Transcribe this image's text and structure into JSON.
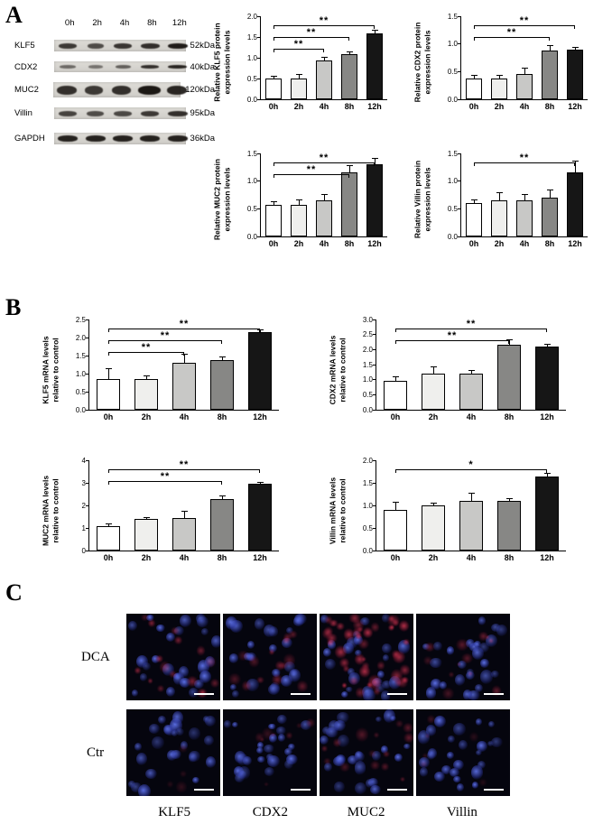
{
  "panel_labels": {
    "a": "A",
    "b": "B",
    "c": "C"
  },
  "bar_colors": [
    "#ffffff",
    "#efefed",
    "#c8c8c6",
    "#878785",
    "#161616"
  ],
  "blot": {
    "timepoints": [
      "0h",
      "2h",
      "4h",
      "8h",
      "12h"
    ],
    "rows": [
      {
        "protein": "KLF5",
        "kda": "52kDa"
      },
      {
        "protein": "CDX2",
        "kda": "40kDa"
      },
      {
        "protein": "MUC2",
        "kda": "120kDa"
      },
      {
        "protein": "Villin",
        "kda": "95kDa"
      },
      {
        "protein": "GAPDH",
        "kda": "36kDa"
      }
    ]
  },
  "chart_data": [
    {
      "id": "klf5-protein",
      "type": "bar",
      "panel": "A",
      "ylabel": "Relative KLF5 protein expression levels",
      "ylabel_lines": [
        "Relative KLF5 protein",
        "expression levels"
      ],
      "categories": [
        "0h",
        "2h",
        "4h",
        "8h",
        "12h"
      ],
      "values": [
        0.5,
        0.5,
        0.93,
        1.08,
        1.58
      ],
      "errors": [
        0.04,
        0.08,
        0.07,
        0.05,
        0.07
      ],
      "ylim": [
        0,
        2.0
      ],
      "yticks": [
        "0.0",
        "0.5",
        "1.0",
        "1.5",
        "2.0"
      ],
      "sig": [
        {
          "from": 0,
          "to": 4,
          "label": "**"
        },
        {
          "from": 0,
          "to": 3,
          "label": "**"
        },
        {
          "from": 0,
          "to": 2,
          "label": "**"
        }
      ]
    },
    {
      "id": "cdx2-protein",
      "type": "bar",
      "panel": "A",
      "ylabel": "Relative CDX2 protein expression levels",
      "ylabel_lines": [
        "Relative CDX2 protein",
        "expression levels"
      ],
      "categories": [
        "0h",
        "2h",
        "4h",
        "8h",
        "12h"
      ],
      "values": [
        0.38,
        0.37,
        0.46,
        0.88,
        0.9
      ],
      "errors": [
        0.04,
        0.05,
        0.09,
        0.08,
        0.03
      ],
      "ylim": [
        0,
        1.5
      ],
      "yticks": [
        "0.0",
        "0.5",
        "1.0",
        "1.5"
      ],
      "sig": [
        {
          "from": 0,
          "to": 4,
          "label": "**"
        },
        {
          "from": 0,
          "to": 3,
          "label": "**"
        }
      ]
    },
    {
      "id": "muc2-protein",
      "type": "bar",
      "panel": "A",
      "ylabel": "Relative MUC2 protein expression levels",
      "ylabel_lines": [
        "Relative MUC2 protein",
        "expression levels"
      ],
      "categories": [
        "0h",
        "2h",
        "4h",
        "8h",
        "12h"
      ],
      "values": [
        0.57,
        0.57,
        0.65,
        1.15,
        1.3
      ],
      "errors": [
        0.05,
        0.09,
        0.1,
        0.12,
        0.1
      ],
      "ylim": [
        0,
        1.5
      ],
      "yticks": [
        "0.0",
        "0.5",
        "1.0",
        "1.5"
      ],
      "sig": [
        {
          "from": 0,
          "to": 4,
          "label": "**"
        },
        {
          "from": 0,
          "to": 3,
          "label": "**"
        }
      ]
    },
    {
      "id": "villin-protein",
      "type": "bar",
      "panel": "A",
      "ylabel": "Relative Villin protein expression levels",
      "ylabel_lines": [
        "Relative Villin protein",
        "expression levels"
      ],
      "categories": [
        "0h",
        "2h",
        "4h",
        "8h",
        "12h"
      ],
      "values": [
        0.6,
        0.65,
        0.65,
        0.7,
        1.15
      ],
      "errors": [
        0.06,
        0.13,
        0.1,
        0.13,
        0.2
      ],
      "ylim": [
        0,
        1.5
      ],
      "yticks": [
        "0.0",
        "0.5",
        "1.0",
        "1.5"
      ],
      "sig": [
        {
          "from": 0,
          "to": 4,
          "label": "**"
        }
      ]
    },
    {
      "id": "klf5-mrna",
      "type": "bar",
      "panel": "B",
      "ylabel": "KLF5 mRNA levels relative to control",
      "ylabel_lines": [
        "KLF5 mRNA levels",
        "relative to control"
      ],
      "categories": [
        "0h",
        "2h",
        "4h",
        "8h",
        "12h"
      ],
      "values": [
        0.85,
        0.85,
        1.3,
        1.38,
        2.15
      ],
      "errors": [
        0.28,
        0.07,
        0.22,
        0.08,
        0.05
      ],
      "ylim": [
        0,
        2.5
      ],
      "yticks": [
        "0.0",
        "0.5",
        "1.0",
        "1.5",
        "2.0",
        "2.5"
      ],
      "sig": [
        {
          "from": 0,
          "to": 4,
          "label": "**"
        },
        {
          "from": 0,
          "to": 3,
          "label": "**"
        },
        {
          "from": 0,
          "to": 2,
          "label": "**"
        }
      ]
    },
    {
      "id": "cdx2-mrna",
      "type": "bar",
      "panel": "B",
      "ylabel": "CDX2 mRNA levels relative to control",
      "ylabel_lines": [
        "CDX2 mRNA levels",
        "relative to control"
      ],
      "categories": [
        "0h",
        "2h",
        "4h",
        "8h",
        "12h"
      ],
      "values": [
        0.95,
        1.2,
        1.2,
        2.15,
        2.1
      ],
      "errors": [
        0.13,
        0.22,
        0.08,
        0.16,
        0.05
      ],
      "ylim": [
        0,
        3.0
      ],
      "yticks": [
        "0.0",
        "0.5",
        "1.0",
        "1.5",
        "2.0",
        "2.5",
        "3.0"
      ],
      "sig": [
        {
          "from": 0,
          "to": 4,
          "label": "**"
        },
        {
          "from": 0,
          "to": 3,
          "label": "**"
        }
      ]
    },
    {
      "id": "muc2-mrna",
      "type": "bar",
      "panel": "B",
      "ylabel": "MUC2 mRNA levels relative to control",
      "ylabel_lines": [
        "MUC2 mRNA levels",
        "relative to control"
      ],
      "categories": [
        "0h",
        "2h",
        "4h",
        "8h",
        "12h"
      ],
      "values": [
        1.1,
        1.4,
        1.45,
        2.3,
        2.95
      ],
      "errors": [
        0.08,
        0.06,
        0.28,
        0.1,
        0.06
      ],
      "ylim": [
        0,
        4
      ],
      "yticks": [
        "0",
        "1",
        "2",
        "3",
        "4"
      ],
      "sig": [
        {
          "from": 0,
          "to": 4,
          "label": "**"
        },
        {
          "from": 0,
          "to": 3,
          "label": "**"
        }
      ]
    },
    {
      "id": "villin-mrna",
      "type": "bar",
      "panel": "B",
      "ylabel": "Villin mRNA levels relative to control",
      "ylabel_lines": [
        "Villin mRNA levels",
        "relative to control"
      ],
      "categories": [
        "0h",
        "2h",
        "4h",
        "8h",
        "12h"
      ],
      "values": [
        0.9,
        1.0,
        1.1,
        1.1,
        1.65
      ],
      "errors": [
        0.16,
        0.04,
        0.16,
        0.04,
        0.05
      ],
      "ylim": [
        0,
        2.0
      ],
      "yticks": [
        "0.0",
        "0.5",
        "1.0",
        "1.5",
        "2.0"
      ],
      "sig": [
        {
          "from": 0,
          "to": 4,
          "label": "*"
        }
      ]
    }
  ],
  "microscopy": {
    "row_labels": [
      "DCA",
      "Ctr"
    ],
    "col_labels": [
      "KLF5",
      "CDX2",
      "MUC2",
      "Villin"
    ]
  }
}
